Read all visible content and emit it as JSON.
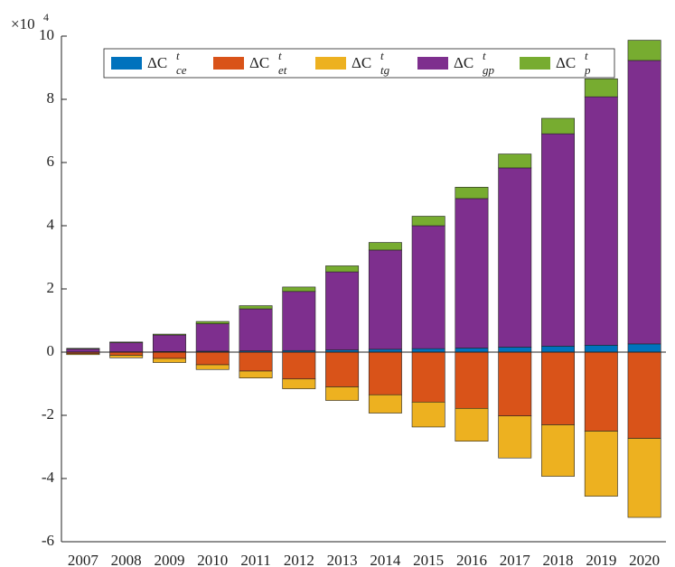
{
  "chart_data": {
    "type": "stacked-bar",
    "y_multiplier": {
      "base": "×10",
      "exponent": "4"
    },
    "categories": [
      "2007",
      "2008",
      "2009",
      "2010",
      "2011",
      "2012",
      "2013",
      "2014",
      "2015",
      "2016",
      "2017",
      "2018",
      "2019",
      "2020"
    ],
    "series": [
      {
        "name": {
          "base": "ΔC",
          "sup": "t",
          "sub": "ce"
        },
        "color": "#0072bd",
        "values": [
          0.005,
          0.01,
          0.02,
          0.03,
          0.04,
          0.05,
          0.07,
          0.09,
          0.11,
          0.13,
          0.16,
          0.19,
          0.22,
          0.26
        ]
      },
      {
        "name": {
          "base": "ΔC",
          "sup": "t",
          "sub": "et"
        },
        "color": "#d95319",
        "values": [
          -0.05,
          -0.1,
          -0.2,
          -0.4,
          -0.6,
          -0.85,
          -1.1,
          -1.35,
          -1.58,
          -1.78,
          -2.02,
          -2.3,
          -2.5,
          -2.73
        ]
      },
      {
        "name": {
          "base": "ΔC",
          "sup": "t",
          "sub": "tg"
        },
        "color": "#edb120",
        "values": [
          -0.03,
          -0.08,
          -0.13,
          -0.15,
          -0.22,
          -0.31,
          -0.43,
          -0.58,
          -0.79,
          -1.04,
          -1.33,
          -1.63,
          -2.06,
          -2.5
        ]
      },
      {
        "name": {
          "base": "ΔC",
          "sup": "t",
          "sub": "gp"
        },
        "color": "#7e2f8e",
        "values": [
          0.095,
          0.29,
          0.52,
          0.87,
          1.33,
          1.87,
          2.47,
          3.14,
          3.89,
          4.73,
          5.67,
          6.72,
          7.86,
          8.97
        ]
      },
      {
        "name": {
          "base": "ΔC",
          "sup": "t",
          "sub": "p"
        },
        "color": "#77ac30",
        "values": [
          0.02,
          0.02,
          0.03,
          0.07,
          0.1,
          0.14,
          0.19,
          0.24,
          0.3,
          0.36,
          0.44,
          0.49,
          0.57,
          0.64
        ]
      }
    ],
    "ylim": [
      -6,
      10
    ],
    "yticks": [
      -6,
      -4,
      -2,
      0,
      2,
      4,
      6,
      8,
      10
    ],
    "legend": "top"
  }
}
